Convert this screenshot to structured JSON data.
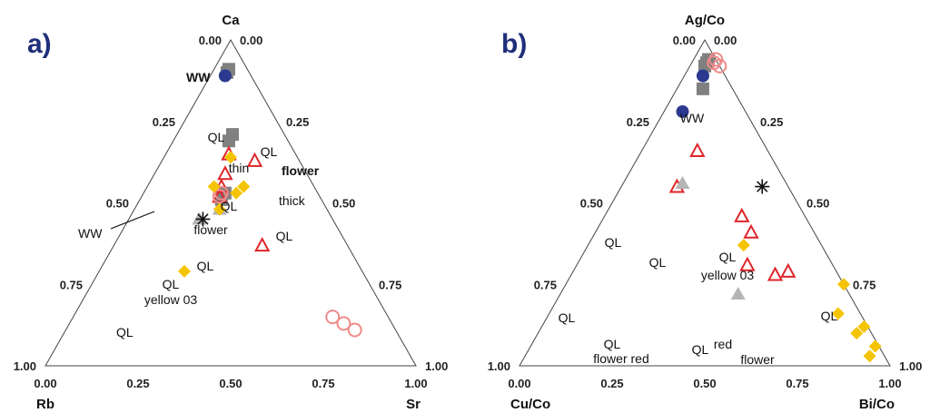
{
  "colors": {
    "panel_label": "#1f2f7a",
    "axis": "#444444",
    "marker_blue": "#2b3a8f",
    "marker_gray_square": "#808080",
    "marker_gray_triangle": "#b5b5b5",
    "marker_red_triangle": "#e0252a",
    "marker_pink_circle": "#f08a8a",
    "marker_yellow_diamond": "#f5c400",
    "marker_star": "#111111"
  },
  "chart_data": [
    {
      "type": "ternary-scatter",
      "panel_label": "a)",
      "axes": {
        "top": "Ca",
        "left": "Rb",
        "right": "Sr"
      },
      "tick_values": [
        0,
        0.25,
        0.5,
        0.75,
        1
      ],
      "tick_labels": [
        "0.00",
        "0.25",
        "0.50",
        "0.75",
        "1.00"
      ],
      "grid": false,
      "annotations": [
        {
          "text": "WW"
        },
        {
          "text": "QL"
        },
        {
          "text": "QL"
        },
        {
          "text": "flower"
        },
        {
          "text": "thin"
        },
        {
          "text": "QL"
        },
        {
          "text": "thick"
        },
        {
          "text": "WW"
        },
        {
          "text": "flower"
        },
        {
          "text": "QL"
        },
        {
          "text": "QL"
        },
        {
          "text": "QL"
        },
        {
          "text": "yellow 03"
        },
        {
          "text": "QL"
        }
      ],
      "series": [
        {
          "marker": "filled-square",
          "color": "#808080",
          "points": [
            [
              0.05,
              0.91,
              0.04
            ],
            [
              0.06,
              0.9,
              0.04
            ],
            [
              0.14,
              0.71,
              0.15
            ],
            [
              0.16,
              0.69,
              0.15
            ],
            [
              0.25,
              0.53,
              0.22
            ],
            [
              0.27,
              0.51,
              0.22
            ]
          ]
        },
        {
          "marker": "filled-circle",
          "color": "#2b3a8f",
          "points": [
            [
              0.07,
              0.89,
              0.04
            ]
          ]
        },
        {
          "marker": "open-triangle",
          "color": "#e0252a",
          "points": [
            [
              0.18,
              0.65,
              0.17
            ],
            [
              0.22,
              0.59,
              0.19
            ],
            [
              0.25,
              0.55,
              0.2
            ],
            [
              0.27,
              0.52,
              0.21
            ],
            [
              0.23,
              0.37,
              0.4
            ],
            [
              0.12,
              0.63,
              0.25
            ]
          ]
        },
        {
          "marker": "open-circle",
          "color": "#f08a8a",
          "points": [
            [
              0.26,
              0.53,
              0.21
            ],
            [
              0.27,
              0.52,
              0.21
            ],
            [
              0.15,
              0.15,
              0.7
            ],
            [
              0.13,
              0.13,
              0.74
            ],
            [
              0.11,
              0.11,
              0.78
            ]
          ]
        },
        {
          "marker": "filled-triangle",
          "color": "#b5b5b5",
          "points": [
            [
              0.29,
              0.48,
              0.23
            ],
            [
              0.36,
              0.45,
              0.19
            ]
          ]
        },
        {
          "marker": "asterisk",
          "color": "#111111",
          "points": [
            [
              0.35,
              0.45,
              0.2
            ]
          ]
        },
        {
          "marker": "filled-diamond",
          "color": "#f5c400",
          "points": [
            [
              0.48,
              0.29,
              0.23
            ],
            [
              0.29,
              0.48,
              0.23
            ],
            [
              0.22,
              0.53,
              0.25
            ],
            [
              0.19,
              0.55,
              0.26
            ],
            [
              0.27,
              0.55,
              0.18
            ],
            [
              0.18,
              0.64,
              0.18
            ]
          ]
        }
      ]
    },
    {
      "type": "ternary-scatter",
      "panel_label": "b)",
      "axes": {
        "top": "Ag/Co",
        "left": "Cu/Co",
        "right": "Bi/Co"
      },
      "tick_values": [
        0,
        0.25,
        0.5,
        0.75,
        1
      ],
      "tick_labels": [
        "0.00",
        "0.25",
        "0.50",
        "0.75",
        "1.00"
      ],
      "grid": false,
      "annotations": [
        {
          "text": "WW"
        },
        {
          "text": "QL"
        },
        {
          "text": "QL"
        },
        {
          "text": "QL"
        },
        {
          "text": "yellow 03"
        },
        {
          "text": "QL"
        },
        {
          "text": "QL"
        },
        {
          "text": "flower red"
        },
        {
          "text": "QL"
        },
        {
          "text": "red"
        },
        {
          "text": "flower"
        },
        {
          "text": "QL"
        }
      ],
      "series": [
        {
          "marker": "filled-square",
          "color": "#808080",
          "points": [
            [
              0.03,
              0.93,
              0.04
            ],
            [
              0.04,
              0.92,
              0.04
            ],
            [
              0.02,
              0.94,
              0.04
            ],
            [
              0.08,
              0.85,
              0.07
            ]
          ]
        },
        {
          "marker": "filled-circle",
          "color": "#2b3a8f",
          "points": [
            [
              0.06,
              0.89,
              0.05
            ],
            [
              0.17,
              0.78,
              0.05
            ]
          ]
        },
        {
          "marker": "open-circle",
          "color": "#f08a8a",
          "points": [
            [
              0.0,
              0.94,
              0.06
            ],
            [
              0.01,
              0.93,
              0.06
            ],
            [
              0.0,
              0.92,
              0.08
            ]
          ]
        },
        {
          "marker": "open-triangle",
          "color": "#e0252a",
          "points": [
            [
              0.3,
              0.55,
              0.15
            ],
            [
              0.19,
              0.66,
              0.15
            ],
            [
              0.17,
              0.46,
              0.37
            ],
            [
              0.17,
              0.41,
              0.42
            ],
            [
              0.23,
              0.31,
              0.46
            ],
            [
              0.17,
              0.28,
              0.55
            ],
            [
              0.13,
              0.29,
              0.58
            ]
          ]
        },
        {
          "marker": "filled-triangle",
          "color": "#b5b5b5",
          "points": [
            [
              0.28,
              0.56,
              0.16
            ],
            [
              0.3,
              0.22,
              0.48
            ]
          ]
        },
        {
          "marker": "asterisk",
          "color": "#111111",
          "points": [
            [
              0.07,
              0.55,
              0.38
            ]
          ]
        },
        {
          "marker": "filled-diamond",
          "color": "#f5c400",
          "points": [
            [
              0.21,
              0.37,
              0.42
            ],
            [
              0.06,
              0.16,
              0.78
            ],
            [
              0.04,
              0.1,
              0.86
            ],
            [
              0.01,
              0.12,
              0.87
            ],
            [
              0.04,
              0.03,
              0.93
            ],
            [
              0.01,
              0.06,
              0.93
            ],
            [
              0.0,
              0.25,
              0.75
            ]
          ]
        }
      ]
    }
  ]
}
